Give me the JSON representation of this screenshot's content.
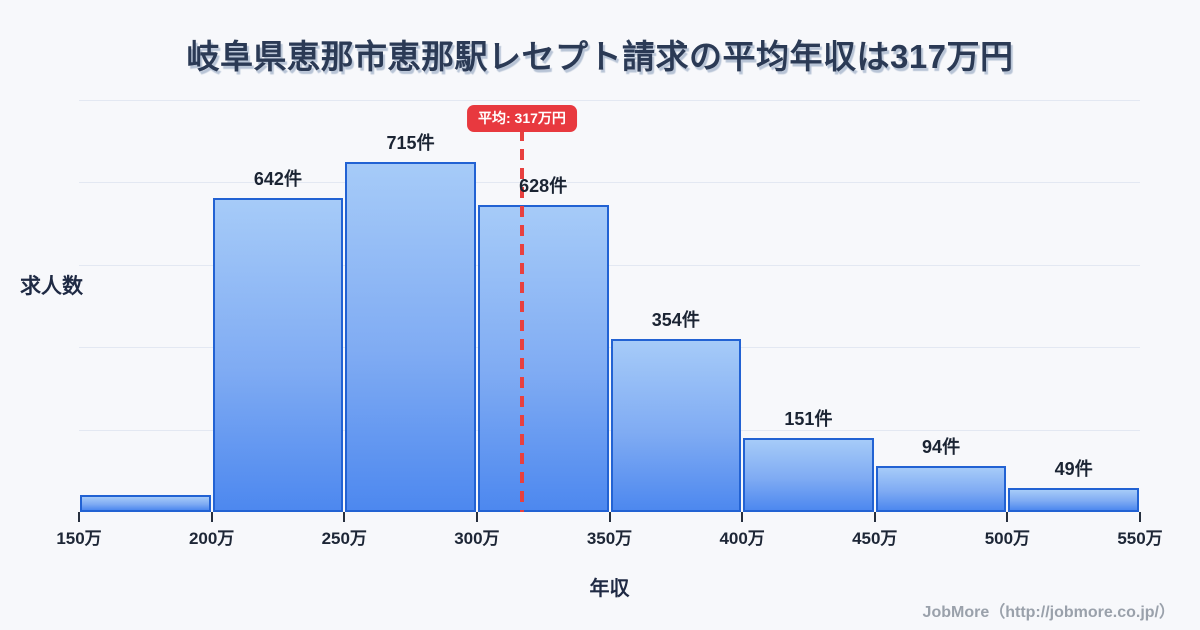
{
  "page": {
    "title": "岐阜県恵那市恵那駅レセプト請求の平均年収は317万円",
    "footer_credit": "JobMore（http://jobmore.co.jp/）",
    "background_color": "#f7f8fb"
  },
  "chart_data": {
    "type": "bar",
    "title": "岐阜県恵那市恵那駅レセプト請求の平均年収は317万円",
    "xlabel": "年収",
    "ylabel": "求人数",
    "x_tick_labels": [
      "150万",
      "200万",
      "250万",
      "300万",
      "350万",
      "400万",
      "450万",
      "500万",
      "550万"
    ],
    "bin_edges_man_yen": [
      150,
      200,
      250,
      300,
      350,
      400,
      450,
      500,
      550
    ],
    "values": [
      35,
      642,
      715,
      628,
      354,
      151,
      94,
      49
    ],
    "bar_labels": [
      "",
      "642件",
      "715件",
      "628件",
      "354件",
      "151件",
      "94件",
      "49件"
    ],
    "ylim": [
      0,
      842
    ],
    "x_range_man_yen": [
      150,
      550
    ],
    "grid": "horizontal",
    "legend": "none",
    "mean": {
      "label": "平均: 317万円",
      "value_man_yen": 317
    },
    "colors": {
      "bar_fill_top": "#a6cbf8",
      "bar_fill_bottom": "#4d88ef",
      "bar_border": "#2262d3",
      "mean_line": "#e8403f",
      "mean_badge_bg": "#e8393f",
      "mean_badge_text": "#ffffff",
      "gridline": "#e3e8f2",
      "title_text": "#2b3a55",
      "label_text": "#1b2433",
      "footer_text": "#9aa1ab"
    }
  }
}
